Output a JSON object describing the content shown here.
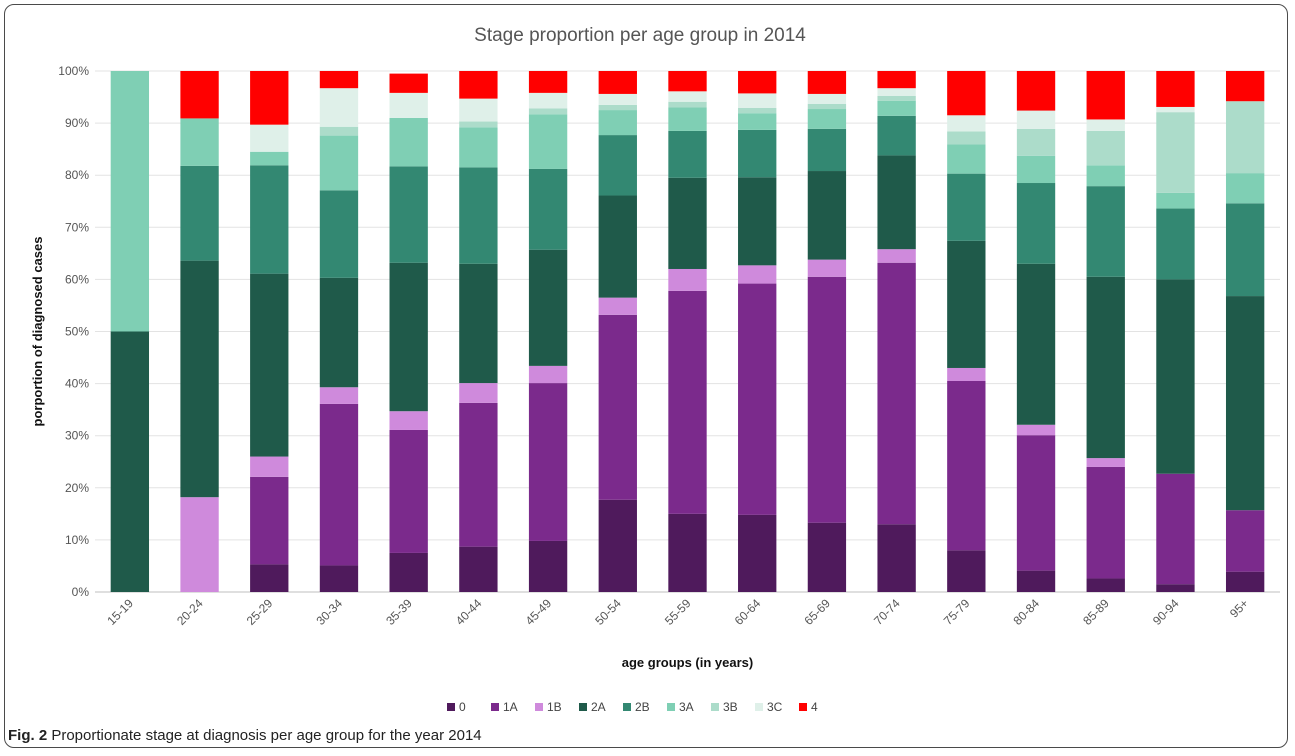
{
  "chart_data": {
    "type": "bar",
    "stacked": "percent",
    "title": "Stage proportion per age group in 2014",
    "xlabel": "age groups (in years)",
    "ylabel": "porportion of diagnosed cases",
    "ylim": [
      0,
      100
    ],
    "yticks": [
      "0%",
      "10%",
      "20%",
      "30%",
      "40%",
      "50%",
      "60%",
      "70%",
      "80%",
      "90%",
      "100%"
    ],
    "grid": true,
    "legend_position": "bottom",
    "categories": [
      "15-19",
      "20-24",
      "25-29",
      "30-34",
      "35-39",
      "40-44",
      "45-49",
      "50-54",
      "55-59",
      "60-64",
      "65-69",
      "70-74",
      "75-79",
      "80-84",
      "85-89",
      "90-94",
      "95+"
    ],
    "series": [
      {
        "name": "0",
        "color": "#4f1a5c",
        "values": [
          0,
          0,
          5.3,
          5.1,
          7.5,
          8.7,
          9.8,
          17.7,
          15.0,
          14.8,
          13.3,
          13.0,
          8.0,
          4.1,
          2.6,
          1.5,
          3.9
        ]
      },
      {
        "name": "1A",
        "color": "#7b2a8c",
        "values": [
          0,
          0,
          16.8,
          31.0,
          23.6,
          27.6,
          30.3,
          35.5,
          42.8,
          44.4,
          47.2,
          50.2,
          32.5,
          26.0,
          21.4,
          21.2,
          11.8
        ]
      },
      {
        "name": "1B",
        "color": "#cf8adc",
        "values": [
          0,
          18.2,
          3.9,
          3.2,
          3.6,
          3.8,
          3.3,
          3.3,
          4.2,
          3.5,
          3.3,
          2.6,
          2.5,
          2.0,
          1.7,
          0,
          0
        ]
      },
      {
        "name": "2A",
        "color": "#1f5a4a",
        "values": [
          50.0,
          45.4,
          35.1,
          21.0,
          28.5,
          22.9,
          22.3,
          19.6,
          17.5,
          16.9,
          17.0,
          18.0,
          24.4,
          30.9,
          34.8,
          37.3,
          41.1
        ]
      },
      {
        "name": "2B",
        "color": "#338872",
        "values": [
          0,
          18.2,
          20.8,
          16.8,
          18.5,
          18.5,
          15.5,
          11.6,
          9.0,
          9.1,
          8.1,
          7.6,
          12.9,
          15.5,
          17.4,
          13.6,
          17.8
        ]
      },
      {
        "name": "3A",
        "color": "#7fcfb4",
        "values": [
          50.0,
          9.1,
          2.6,
          10.5,
          9.3,
          7.7,
          10.5,
          4.8,
          4.5,
          3.2,
          3.8,
          2.9,
          5.6,
          5.2,
          4.0,
          3.0,
          5.8
        ]
      },
      {
        "name": "3B",
        "color": "#acdcca",
        "values": [
          0,
          0,
          0,
          1.7,
          0,
          1.1,
          1.1,
          1.0,
          1.1,
          1.0,
          1.0,
          0.9,
          2.5,
          5.2,
          6.6,
          15.5,
          13.8
        ]
      },
      {
        "name": "3C",
        "color": "#dff0e9",
        "values": [
          0,
          0,
          5.2,
          7.4,
          4.8,
          4.4,
          3.0,
          2.1,
          2.0,
          2.8,
          1.9,
          1.5,
          3.1,
          3.5,
          2.2,
          1.0,
          0
        ]
      },
      {
        "name": "4",
        "color": "#ff0000",
        "values": [
          0,
          9.1,
          10.3,
          3.3,
          3.7,
          5.3,
          4.2,
          4.4,
          3.9,
          4.3,
          4.4,
          3.3,
          8.5,
          7.6,
          9.3,
          6.9,
          5.8
        ]
      }
    ]
  },
  "caption": {
    "label": "Fig. 2",
    "text": " Proportionate stage at diagnosis per age group for the year 2014"
  }
}
